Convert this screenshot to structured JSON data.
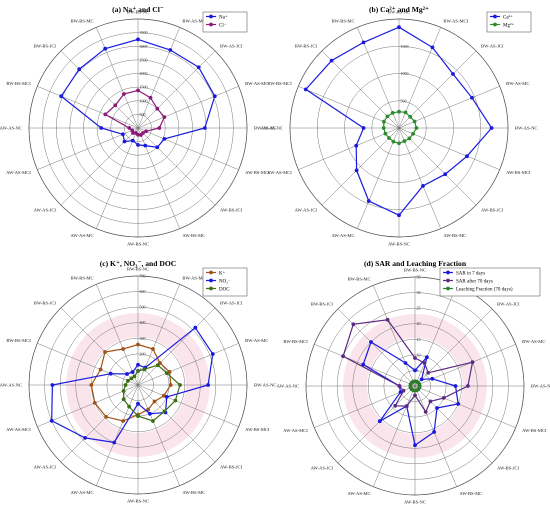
{
  "categories": [
    "BW-BS-NC",
    "BW-AS-MCI",
    "BW-AS-JCI",
    "BW-AS-MC",
    "BW-AS-NC",
    "AW-BS-MCI",
    "AW-BS-JCI",
    "AW-BS-MC",
    "AW-BS-NC",
    "AW-AS-MC",
    "AW-AS-JCI",
    "AW-AS-MCI",
    "AW-AS-NC",
    "BW-BS-MCI",
    "BW-BS-JCI",
    "BW-BS-MC"
  ],
  "chart_data": [
    {
      "type": "radar",
      "title": "(a) Na⁺ and Cl⁻",
      "r_max": 4000,
      "ticks": [
        500,
        1000,
        1500,
        2000,
        2500,
        3000,
        3500
      ],
      "tick_labels": [
        "500",
        "1000",
        "1500",
        "2000",
        "2500",
        "3000",
        "3500"
      ],
      "legend_position": "top-right",
      "series": [
        {
          "name": "Na⁺",
          "color": "#1a1adf",
          "values": [
            3250,
            3100,
            3150,
            3050,
            2450,
            1050,
            1000,
            700,
            620,
            500,
            700,
            600,
            1350,
            3050,
            3050,
            3150
          ]
        },
        {
          "name": "Cl⁻",
          "color": "#8b1a7a",
          "values": [
            1380,
            1200,
            1000,
            1050,
            780,
            320,
            260,
            280,
            250,
            200,
            260,
            230,
            320,
            1300,
            1180,
            1350
          ]
        }
      ]
    },
    {
      "type": "radar",
      "title": "(b) Ca²⁺ and Mg²⁺",
      "r_max": 2000,
      "ticks": [
        500,
        1000,
        1500
      ],
      "tick_labels": [
        "500",
        "1000",
        "1500"
      ],
      "legend_position": "top-right",
      "series": [
        {
          "name": "Ca²⁺",
          "color": "#1a1adf",
          "values": [
            1850,
            1600,
            1400,
            1450,
            1700,
            1350,
            1200,
            1150,
            1600,
            1450,
            1100,
            850,
            650,
            1850,
            1750,
            1700
          ]
        },
        {
          "name": "Mg²⁺",
          "color": "#2e8b2e",
          "values": [
            300,
            310,
            290,
            310,
            320,
            280,
            270,
            260,
            280,
            270,
            260,
            270,
            280,
            300,
            300,
            300
          ]
        }
      ]
    },
    {
      "type": "radar",
      "title": "(c) K⁺, NO₃⁻, and DOC",
      "r_max": 700,
      "ticks": [
        100,
        200,
        300,
        400,
        500,
        600,
        700
      ],
      "tick_labels": [
        "100",
        "200",
        "300",
        "400",
        "500",
        "600",
        "700"
      ],
      "legend_position": "top-right",
      "series": [
        {
          "name": "K⁺",
          "color": "#a0521a",
          "values": [
            260,
            250,
            200,
            220,
            210,
            180,
            150,
            170,
            190,
            250,
            290,
            300,
            300,
            260,
            300,
            250
          ]
        },
        {
          "name": "NO₃⁻",
          "color": "#1a1adf",
          "values": [
            130,
            120,
            520,
            520,
            450,
            200,
            250,
            200,
            120,
            400,
            480,
            600,
            550,
            190,
            100,
            90
          ]
        },
        {
          "name": "DOC",
          "color": "#3c6e14",
          "values": [
            90,
            110,
            180,
            200,
            270,
            260,
            240,
            250,
            200,
            150,
            130,
            100,
            80,
            70,
            60,
            60
          ]
        }
      ]
    },
    {
      "type": "radar",
      "title": "(d) SAR and Leaching Fraction",
      "r_max": 35,
      "ticks": [
        5,
        10,
        15,
        20,
        25,
        30,
        35
      ],
      "tick_labels": [
        "5",
        "10",
        "15",
        "20",
        "25",
        "30",
        "35"
      ],
      "legend_position": "top-right",
      "series": [
        {
          "name": "SAR in 7 days",
          "color": "#1a1adf",
          "values": [
            5,
            10,
            3,
            6,
            13,
            15,
            10,
            16,
            19,
            7,
            16,
            5,
            5,
            18,
            20,
            8
          ]
        },
        {
          "name": "SAR after 70 days",
          "color": "#5c2a80",
          "values": [
            9,
            8,
            6,
            20,
            17,
            10,
            7,
            9,
            3,
            7,
            9,
            4,
            5,
            25,
            28,
            23
          ]
        },
        {
          "name": "Leaching Fraction (70 days)",
          "color": "#2e7d2e",
          "values": [
            1.5,
            1.5,
            1.5,
            1.5,
            1.5,
            1.5,
            1.5,
            1.5,
            1.5,
            1.5,
            1.5,
            1.5,
            1.5,
            1.5,
            1.5,
            1.5
          ]
        }
      ]
    }
  ],
  "colors": {
    "grid": "#777777",
    "background_band": "#f3c6d6"
  }
}
